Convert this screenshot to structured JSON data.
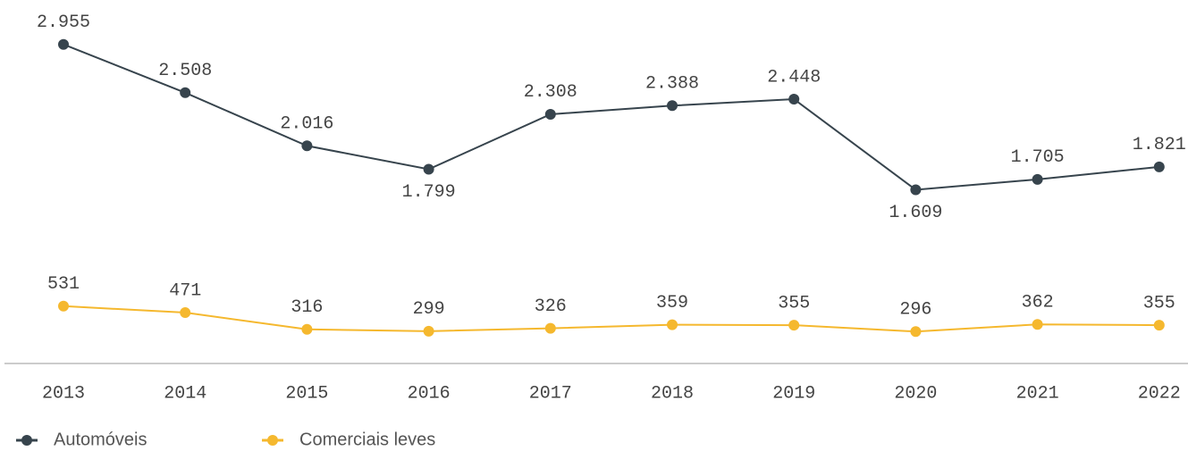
{
  "chart_data": {
    "type": "line",
    "categories": [
      "2013",
      "2014",
      "2015",
      "2016",
      "2017",
      "2018",
      "2019",
      "2020",
      "2021",
      "2022"
    ],
    "series": [
      {
        "name": "Automóveis",
        "color": "#37444d",
        "values": [
          2955,
          2508,
          2016,
          1799,
          2308,
          2388,
          2448,
          1609,
          1705,
          1821
        ],
        "value_labels": [
          "2.955",
          "2.508",
          "2.016",
          "1.799",
          "2.308",
          "2.388",
          "2.448",
          "1.609",
          "1.705",
          "1.821"
        ]
      },
      {
        "name": "Comerciais leves",
        "color": "#f5b82e",
        "values": [
          531,
          471,
          316,
          299,
          326,
          359,
          355,
          296,
          362,
          355
        ]
      }
    ]
  }
}
